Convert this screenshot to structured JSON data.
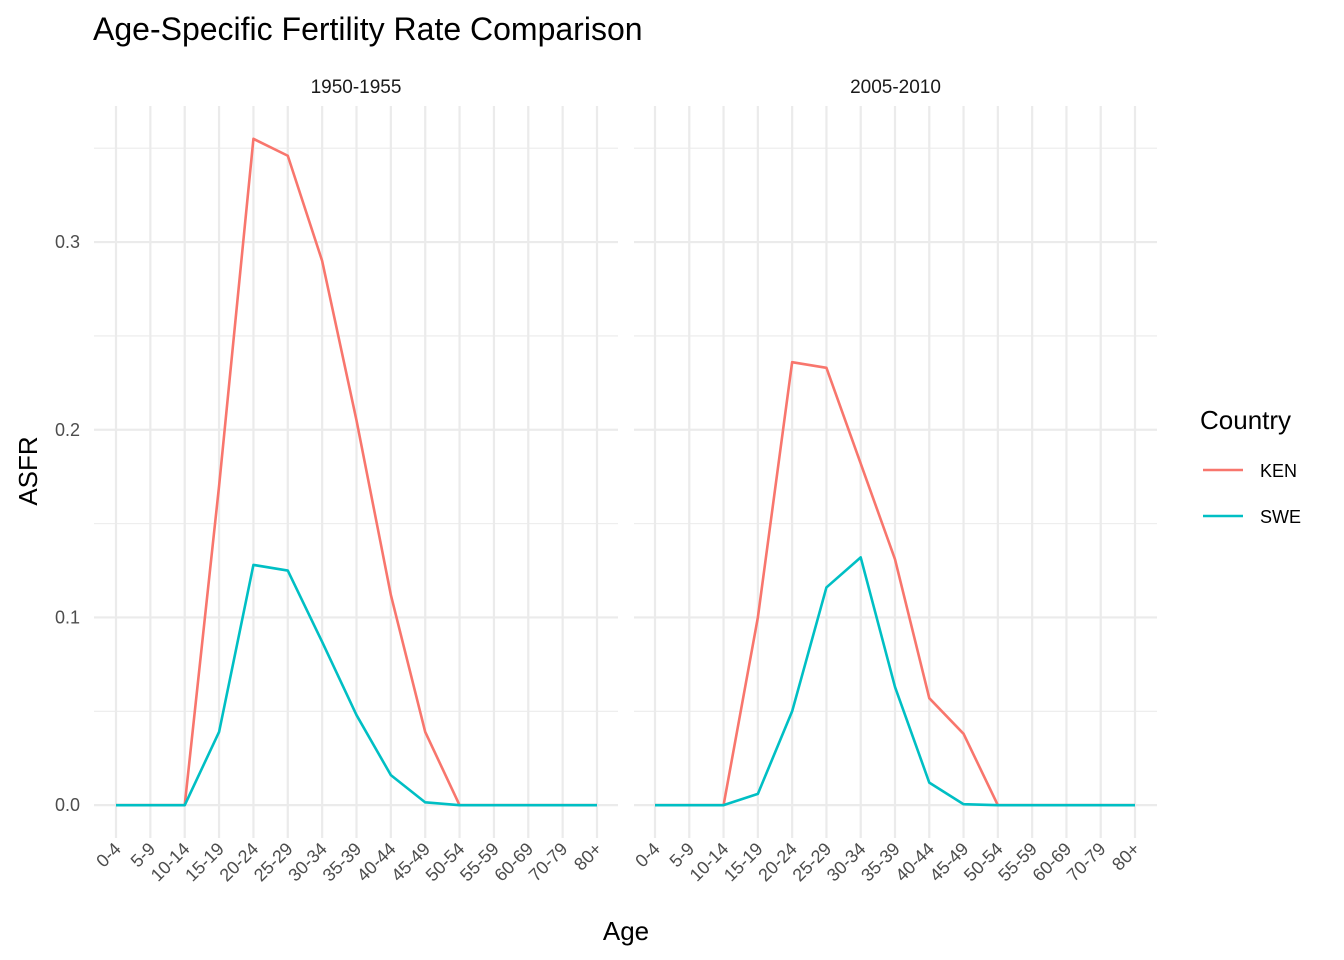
{
  "chart_data": {
    "type": "line",
    "title": "Age-Specific Fertility Rate Comparison",
    "xlabel": "Age",
    "ylabel": "ASFR",
    "ylim": [
      -0.0175,
      0.3725
    ],
    "yticks": [
      0.0,
      0.1,
      0.2,
      0.3
    ],
    "ytick_labels": [
      "0.0",
      "0.1",
      "0.2",
      "0.3"
    ],
    "grid": true,
    "legend": {
      "title": "Country",
      "placement": "right",
      "entries": [
        {
          "label": "KEN",
          "color": "#F8766D"
        },
        {
          "label": "SWE",
          "color": "#00BFC4"
        }
      ]
    },
    "categories": [
      "0-4",
      "5-9",
      "10-14",
      "15-19",
      "20-24",
      "25-29",
      "30-34",
      "35-39",
      "40-44",
      "45-49",
      "50-54",
      "55-59",
      "60-69",
      "70-79",
      "80+"
    ],
    "panels": [
      {
        "label": "1950-1955",
        "series": [
          {
            "name": "KEN",
            "color": "#F8766D",
            "values": [
              0,
              0,
              0,
              0.17,
              0.355,
              0.346,
              0.29,
              0.205,
              0.112,
              0.039,
              0,
              0,
              0,
              0,
              0
            ]
          },
          {
            "name": "SWE",
            "color": "#00BFC4",
            "values": [
              0,
              0,
              0,
              0.039,
              0.128,
              0.125,
              0.087,
              0.048,
              0.016,
              0.0015,
              0,
              0,
              0,
              0,
              0
            ]
          }
        ]
      },
      {
        "label": "2005-2010",
        "series": [
          {
            "name": "KEN",
            "color": "#F8766D",
            "values": [
              0,
              0,
              0,
              0.1,
              0.236,
              0.233,
              0.182,
              0.131,
              0.057,
              0.038,
              0,
              0,
              0,
              0,
              0
            ]
          },
          {
            "name": "SWE",
            "color": "#00BFC4",
            "values": [
              0,
              0,
              0,
              0.006,
              0.05,
              0.116,
              0.132,
              0.063,
              0.012,
              0.0005,
              0,
              0,
              0,
              0,
              0
            ]
          }
        ]
      }
    ]
  }
}
